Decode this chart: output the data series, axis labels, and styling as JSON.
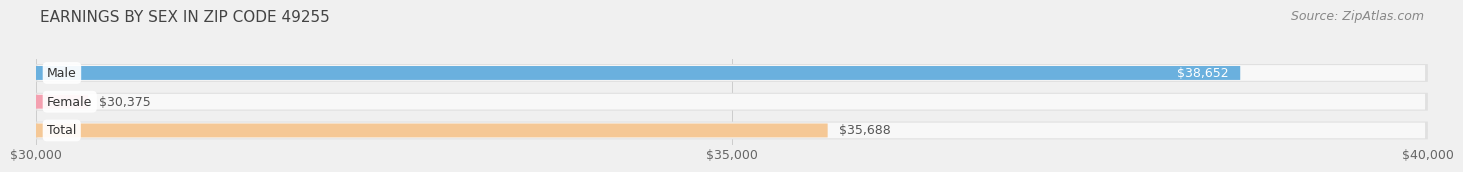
{
  "title": "EARNINGS BY SEX IN ZIP CODE 49255",
  "source": "Source: ZipAtlas.com",
  "categories": [
    "Total",
    "Female",
    "Male"
  ],
  "values": [
    35688,
    30375,
    38652
  ],
  "bar_colors": [
    "#f5c896",
    "#f4a0b0",
    "#6ab0de"
  ],
  "value_labels": [
    "$35,688",
    "$30,375",
    "$38,652"
  ],
  "label_inside": [
    false,
    false,
    true
  ],
  "x_min": 30000,
  "x_max": 40000,
  "x_ticks": [
    30000,
    35000,
    40000
  ],
  "x_tick_labels": [
    "$30,000",
    "$35,000",
    "$40,000"
  ],
  "background_color": "#f0f0f0",
  "bar_bg_color": "#e0e0e0",
  "bar_inner_bg_color": "#f8f8f8",
  "title_fontsize": 11,
  "source_fontsize": 9,
  "label_fontsize": 9,
  "tick_fontsize": 9,
  "bar_height": 0.62,
  "cat_label_fontsize": 9
}
